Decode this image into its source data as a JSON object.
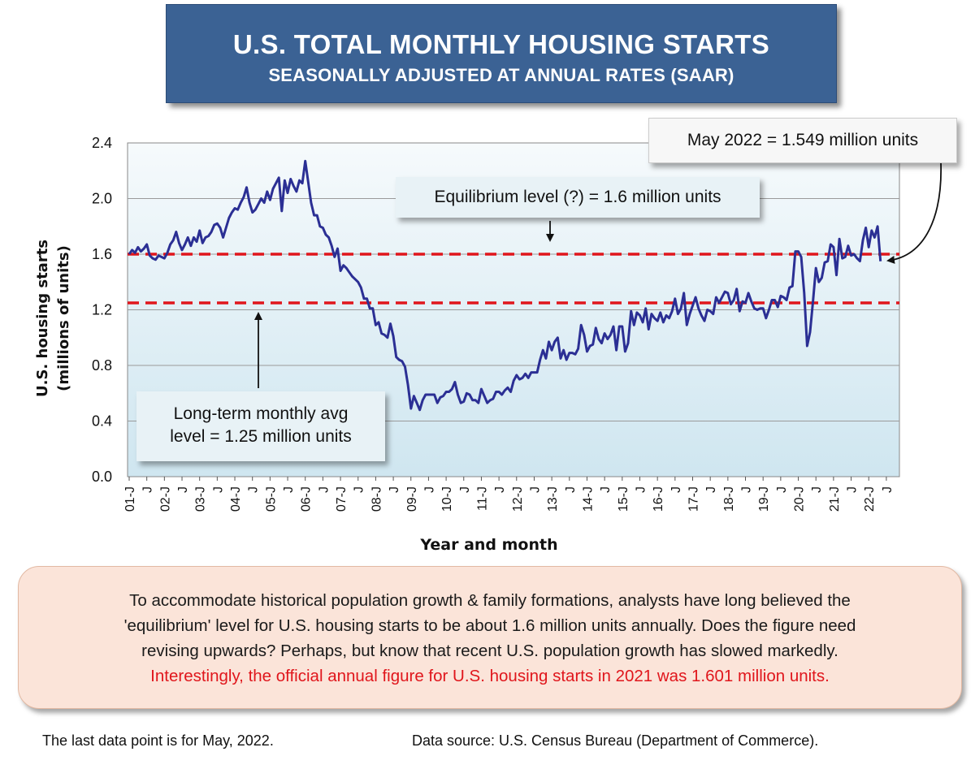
{
  "header": {
    "title": "U.S. TOTAL MONTHLY HOUSING STARTS",
    "subtitle": "SEASONALLY ADJUSTED AT ANNUAL RATES (SAAR)"
  },
  "callouts": {
    "latest": "May 2022 = 1.549 million units",
    "equilibrium": "Equilibrium level (?) = 1.6 million units",
    "longterm_line1": "Long-term monthly avg",
    "longterm_line2": "level = 1.25 million units"
  },
  "note": {
    "line1": "To accommodate historical population growth & family formations, analysts have long believed the",
    "line2": "'equilibrium' level for U.S. housing starts to be about 1.6 million units annually. Does the figure need",
    "line3": "revising upwards? Perhaps, but know that recent U.S. population growth has slowed markedly.",
    "line4": "Interestingly, the official annual figure for U.S. housing starts in 2021 was 1.601 million units."
  },
  "footer": {
    "left": "The last data point is for May, 2022.",
    "right": "Data source: U.S. Census Bureau (Department of Commerce)."
  },
  "colors": {
    "title_bg": "#3b6294",
    "series_line": "#2b2f94",
    "reference_lines": "#e0161c",
    "plot_bg_top": "#f6fafc",
    "plot_bg_bottom": "#cfe6f0",
    "note_bg": "#fbe4d9",
    "note_highlight": "#e0161c"
  },
  "chart_data": {
    "type": "line",
    "title": "U.S. TOTAL MONTHLY HOUSING STARTS",
    "subtitle": "SEASONALLY ADJUSTED AT ANNUAL RATES (SAAR)",
    "xlabel": "Year and month",
    "ylabel": "U.S. housing starts",
    "ylabel_line2": "(millions of units)",
    "ylim": [
      0,
      2.4
    ],
    "yticks": [
      "0.0",
      "0.4",
      "0.8",
      "1.2",
      "1.6",
      "2.0",
      "2.4"
    ],
    "xticks": [
      "01-J",
      "J",
      "02-J",
      "J",
      "03-J",
      "J",
      "04-J",
      "J",
      "05-J",
      "J",
      "06-J",
      "J",
      "07-J",
      "J",
      "08-J",
      "J",
      "09-J",
      "J",
      "10-J",
      "J",
      "11-J",
      "J",
      "12-J",
      "J",
      "13-J",
      "J",
      "14-J",
      "J",
      "15-J",
      "J",
      "16-J",
      "J",
      "17-J",
      "J",
      "18-J",
      "J",
      "19-J",
      "J",
      "20-J",
      "J",
      "21-J",
      "J",
      "22-J",
      "J"
    ],
    "grid": true,
    "reference_lines": [
      {
        "value": 1.6,
        "style": "dashed"
      },
      {
        "value": 1.25,
        "style": "dashed"
      }
    ],
    "series": [
      {
        "x_start": "2001-01",
        "x_end": "2022-05",
        "frequency": "monthly",
        "values": [
          1.6,
          1.63,
          1.61,
          1.65,
          1.62,
          1.64,
          1.67,
          1.59,
          1.57,
          1.56,
          1.59,
          1.58,
          1.57,
          1.61,
          1.67,
          1.7,
          1.76,
          1.68,
          1.63,
          1.67,
          1.72,
          1.66,
          1.72,
          1.69,
          1.77,
          1.68,
          1.72,
          1.73,
          1.76,
          1.81,
          1.82,
          1.79,
          1.72,
          1.79,
          1.86,
          1.9,
          1.93,
          1.92,
          1.97,
          2.01,
          2.08,
          1.97,
          1.9,
          1.92,
          1.96,
          2.0,
          1.97,
          2.05,
          1.99,
          2.07,
          2.11,
          2.15,
          1.91,
          2.13,
          2.04,
          2.14,
          2.09,
          2.05,
          2.13,
          2.11,
          2.27,
          2.12,
          1.97,
          1.88,
          1.88,
          1.8,
          1.79,
          1.74,
          1.72,
          1.66,
          1.58,
          1.64,
          1.48,
          1.52,
          1.5,
          1.47,
          1.44,
          1.42,
          1.4,
          1.36,
          1.28,
          1.28,
          1.21,
          1.21,
          1.09,
          1.11,
          1.03,
          1.02,
          1.0,
          1.1,
          1.01,
          0.86,
          0.84,
          0.83,
          0.79,
          0.66,
          0.49,
          0.58,
          0.53,
          0.48,
          0.55,
          0.59,
          0.59,
          0.59,
          0.59,
          0.53,
          0.57,
          0.58,
          0.61,
          0.61,
          0.63,
          0.68,
          0.59,
          0.53,
          0.54,
          0.6,
          0.59,
          0.55,
          0.55,
          0.53,
          0.63,
          0.58,
          0.53,
          0.55,
          0.56,
          0.61,
          0.61,
          0.59,
          0.62,
          0.64,
          0.61,
          0.69,
          0.73,
          0.7,
          0.71,
          0.74,
          0.71,
          0.75,
          0.75,
          0.75,
          0.84,
          0.91,
          0.85,
          0.97,
          0.91,
          0.97,
          1.0,
          0.85,
          0.91,
          0.84,
          0.89,
          0.89,
          0.88,
          0.92,
          1.09,
          1.02,
          0.9,
          0.94,
          0.95,
          1.07,
          0.99,
          0.96,
          1.03,
          0.99,
          1.02,
          1.08,
          0.91,
          1.08,
          1.08,
          0.9,
          0.96,
          1.19,
          1.09,
          1.18,
          1.16,
          1.11,
          1.21,
          1.06,
          1.17,
          1.14,
          1.12,
          1.18,
          1.11,
          1.16,
          1.14,
          1.19,
          1.28,
          1.17,
          1.21,
          1.32,
          1.09,
          1.17,
          1.23,
          1.29,
          1.21,
          1.16,
          1.12,
          1.2,
          1.19,
          1.17,
          1.29,
          1.25,
          1.29,
          1.33,
          1.32,
          1.24,
          1.27,
          1.35,
          1.19,
          1.26,
          1.25,
          1.32,
          1.26,
          1.21,
          1.2,
          1.21,
          1.21,
          1.14,
          1.2,
          1.27,
          1.27,
          1.22,
          1.3,
          1.29,
          1.27,
          1.36,
          1.37,
          1.62,
          1.62,
          1.58,
          1.32,
          0.94,
          1.04,
          1.26,
          1.5,
          1.4,
          1.43,
          1.54,
          1.55,
          1.67,
          1.65,
          1.45,
          1.71,
          1.57,
          1.58,
          1.66,
          1.59,
          1.6,
          1.57,
          1.55,
          1.7,
          1.79,
          1.65,
          1.77,
          1.72,
          1.8,
          1.549
        ]
      }
    ]
  }
}
